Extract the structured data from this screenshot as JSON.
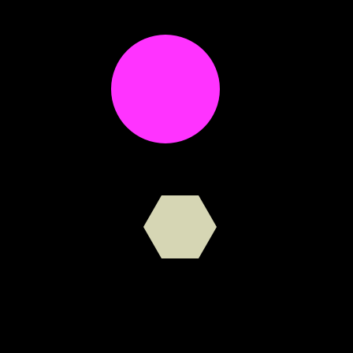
{
  "scene": {
    "background_color": "#000000",
    "shapes": [
      {
        "kind": "circle",
        "color": "#FF33FF"
      },
      {
        "kind": "hexagon",
        "color": "#D6D6B4"
      }
    ]
  }
}
